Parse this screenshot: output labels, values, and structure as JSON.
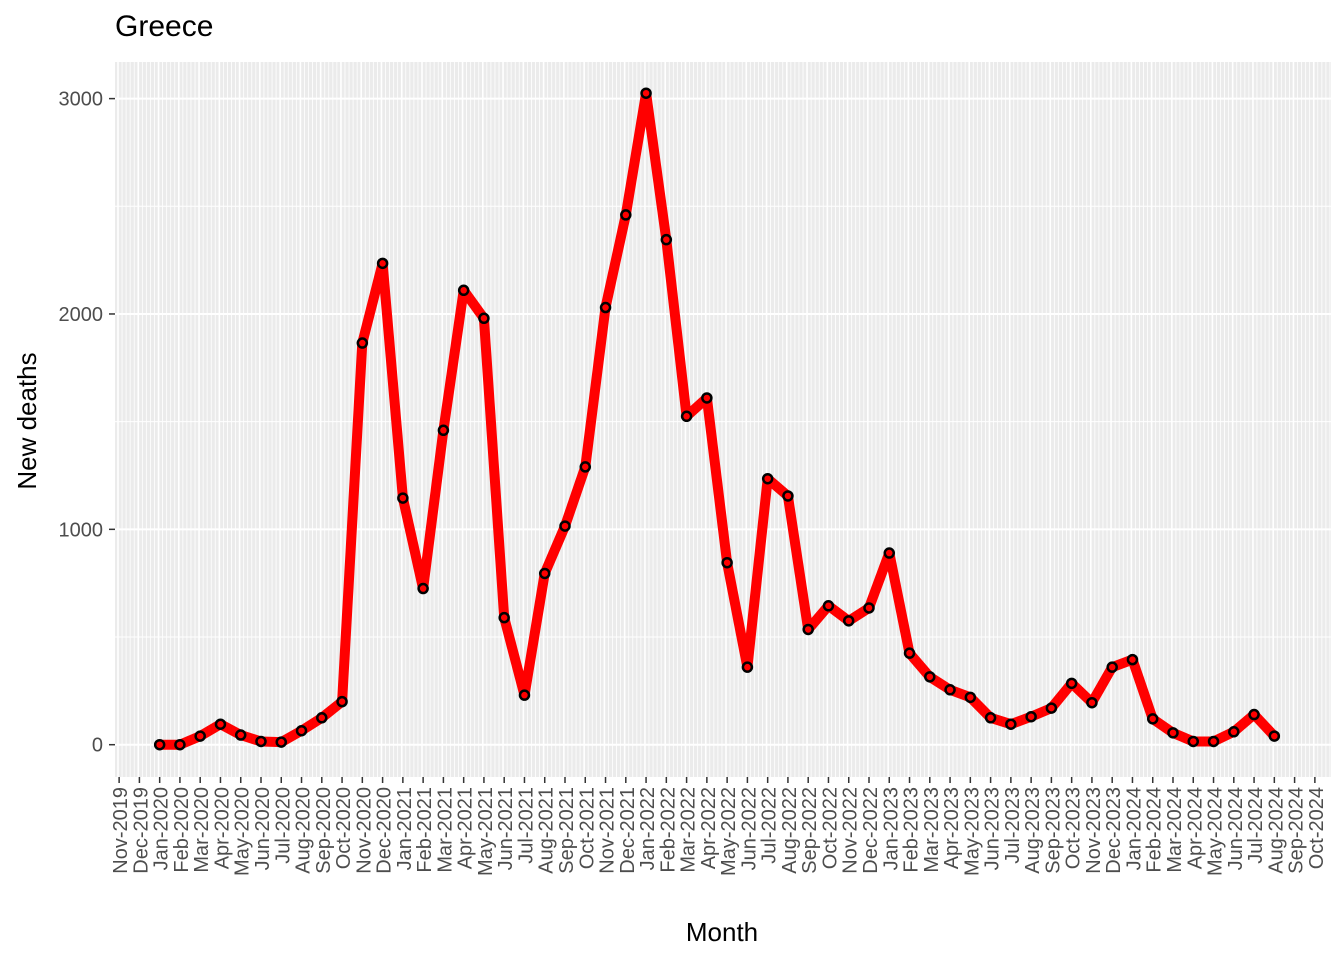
{
  "chart_data": {
    "type": "line",
    "title": "Greece",
    "xlabel": "Month",
    "ylabel": "New deaths",
    "ylim": [
      -150,
      3170
    ],
    "y_ticks": [
      0,
      1000,
      2000,
      3000
    ],
    "x_tick_labels": [
      "Nov-2019",
      "Dec-2019",
      "Jan-2020",
      "Feb-2020",
      "Mar-2020",
      "Apr-2020",
      "May-2020",
      "Jun-2020",
      "Jul-2020",
      "Aug-2020",
      "Sep-2020",
      "Oct-2020",
      "Nov-2020",
      "Dec-2020",
      "Jan-2021",
      "Feb-2021",
      "Mar-2021",
      "Apr-2021",
      "May-2021",
      "Jun-2021",
      "Jul-2021",
      "Aug-2021",
      "Sep-2021",
      "Oct-2021",
      "Nov-2021",
      "Dec-2021",
      "Jan-2022",
      "Feb-2022",
      "Mar-2022",
      "Apr-2022",
      "May-2022",
      "Jun-2022",
      "Jul-2022",
      "Aug-2022",
      "Sep-2022",
      "Oct-2022",
      "Nov-2022",
      "Dec-2022",
      "Jan-2023",
      "Feb-2023",
      "Mar-2023",
      "Apr-2023",
      "May-2023",
      "Jun-2023",
      "Jul-2023",
      "Aug-2023",
      "Sep-2023",
      "Oct-2023",
      "Nov-2023",
      "Dec-2023",
      "Jan-2024",
      "Feb-2024",
      "Mar-2024",
      "Apr-2024",
      "May-2024",
      "Jun-2024",
      "Jul-2024",
      "Aug-2024",
      "Sep-2024",
      "Oct-2024"
    ],
    "series": [
      {
        "color": "#ff0000",
        "x": [
          "Jan-2020",
          "Feb-2020",
          "Mar-2020",
          "Apr-2020",
          "May-2020",
          "Jun-2020",
          "Jul-2020",
          "Aug-2020",
          "Sep-2020",
          "Oct-2020",
          "Nov-2020",
          "Dec-2020",
          "Jan-2021",
          "Feb-2021",
          "Mar-2021",
          "Apr-2021",
          "May-2021",
          "Jun-2021",
          "Jul-2021",
          "Aug-2021",
          "Sep-2021",
          "Oct-2021",
          "Nov-2021",
          "Dec-2021",
          "Jan-2022",
          "Feb-2022",
          "Mar-2022",
          "Apr-2022",
          "May-2022",
          "Jun-2022",
          "Jul-2022",
          "Aug-2022",
          "Sep-2022",
          "Oct-2022",
          "Nov-2022",
          "Dec-2022",
          "Jan-2023",
          "Feb-2023",
          "Mar-2023",
          "Apr-2023",
          "May-2023",
          "Jun-2023",
          "Jul-2023",
          "Aug-2023",
          "Sep-2023",
          "Oct-2023",
          "Nov-2023",
          "Dec-2023",
          "Jan-2024",
          "Feb-2024",
          "Mar-2024",
          "Apr-2024",
          "May-2024",
          "Jun-2024",
          "Jul-2024",
          "Aug-2024"
        ],
        "values": [
          0,
          0,
          40,
          95,
          45,
          15,
          12,
          65,
          125,
          200,
          1865,
          2235,
          1145,
          725,
          1460,
          2110,
          1980,
          590,
          230,
          795,
          1015,
          1290,
          2030,
          2460,
          3025,
          2345,
          1525,
          1610,
          845,
          360,
          1235,
          1155,
          535,
          645,
          575,
          635,
          890,
          425,
          315,
          255,
          220,
          125,
          95,
          130,
          170,
          285,
          195,
          360,
          395,
          120,
          55,
          15,
          15,
          60,
          140,
          40
        ]
      }
    ],
    "grid": true,
    "legend": "none"
  }
}
